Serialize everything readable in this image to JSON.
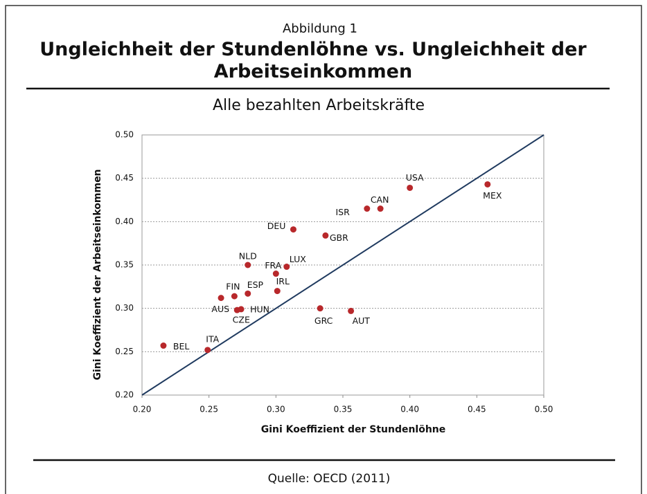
{
  "chart_data": {
    "type": "scatter",
    "figure_label": "Abbildung 1",
    "title": "Ungleichheit der Stundenlöhne vs. Ungleichheit der Arbeitseinkommen",
    "subtitle": "Alle bezahlten Arbeitskräfte",
    "x_label": "Gini Koeffizient der Stundenlöhne",
    "y_label": "Gini Koeffizient der Arbeitseinkommen",
    "source": "Quelle: OECD (2011)",
    "color": "#b8282b",
    "line_color": "#1f3a5f",
    "grid": true,
    "xlim": [
      0.2,
      0.5
    ],
    "ylim": [
      0.2,
      0.5
    ],
    "xticks": [
      {
        "value": 0.2,
        "label": "0.20"
      },
      {
        "value": 0.25,
        "label": "0.25"
      },
      {
        "value": 0.3,
        "label": "0.30"
      },
      {
        "value": 0.35,
        "label": "0.35"
      },
      {
        "value": 0.4,
        "label": "0.40"
      },
      {
        "value": 0.45,
        "label": "0.45"
      },
      {
        "value": 0.5,
        "label": "0.50"
      }
    ],
    "yticks": [
      {
        "value": 0.2,
        "label": "0.20"
      },
      {
        "value": 0.25,
        "label": "0.25"
      },
      {
        "value": 0.3,
        "label": "0.30"
      },
      {
        "value": 0.35,
        "label": "0.35"
      },
      {
        "value": 0.4,
        "label": "0.40"
      },
      {
        "value": 0.45,
        "label": "0.45"
      },
      {
        "value": 0.5,
        "label": "0.50"
      }
    ],
    "labels": [
      "BEL",
      "ITA",
      "AUS",
      "FIN",
      "ESP",
      "CZE",
      "HUN",
      "NLD",
      "FRA",
      "LUX",
      "IRL",
      "DEU",
      "GBR",
      "GRC",
      "AUT",
      "ISR",
      "CAN",
      "USA",
      "MEX"
    ],
    "x": [
      0.216,
      0.249,
      0.259,
      0.269,
      0.279,
      0.271,
      0.274,
      0.279,
      0.3,
      0.308,
      0.301,
      0.313,
      0.337,
      0.333,
      0.356,
      0.368,
      0.378,
      0.4,
      0.458
    ],
    "y": [
      0.257,
      0.252,
      0.312,
      0.314,
      0.317,
      0.298,
      0.299,
      0.35,
      0.34,
      0.348,
      0.32,
      0.391,
      0.384,
      0.3,
      0.297,
      0.415,
      0.415,
      0.439,
      0.443
    ]
  }
}
